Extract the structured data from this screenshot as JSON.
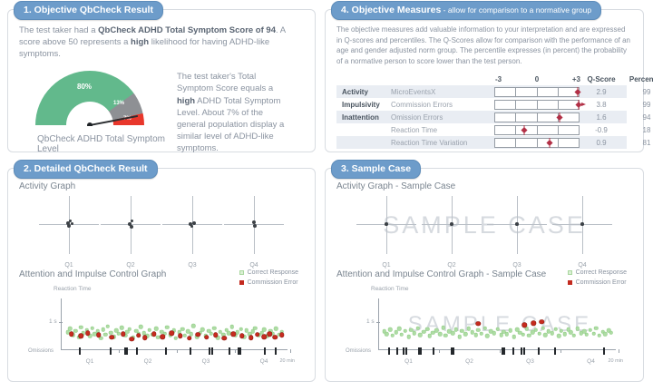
{
  "objective_result": {
    "header": "1. Objective QbCheck Result",
    "intro": {
      "p1": "The test taker had a ",
      "b1": "QbCheck ADHD Total Symptom Score of 94",
      "p2": ". A score above 50 represents a ",
      "b2": "high",
      "p3": " likelihood for having ADHD-like symptoms."
    },
    "side": {
      "p1": "The test taker's Total Symptom Score equals a ",
      "b1": "high",
      "p2": " ADHD Total Symptom Level. About 7% of the general population display a similar level of ADHD-like symptoms."
    }
  },
  "objective_measures": {
    "header": "4. Objective Measures",
    "header_suffix": " - allow for comparison to a normative group",
    "paragraph": "The objective measures add valuable information to your interpretation and are expressed in Q-scores and percentiles. The Q-Scores allow for comparison with the performance of an age and gender adjusted norm group. The percentile expresses (in percent) the probability of a normative person to score lower than the test person.",
    "scale": [
      "-3",
      "0",
      "+3"
    ],
    "q_header": "Q-Score",
    "pct_header": "Percentile"
  },
  "detailed_result": {
    "header": "2. Detailed QbCheck Result",
    "activity_title": "Activity Graph",
    "attention_title": "Attention and Impulse Control Graph",
    "quarters": [
      "Q1",
      "Q2",
      "Q3",
      "Q4"
    ],
    "legend": {
      "correct": "Correct Response",
      "commission": "Commission Error"
    },
    "axis": {
      "ylabel": "Reaction Time",
      "ytick": "1 s",
      "origin": "Omissions",
      "xend": "20 min"
    }
  },
  "sample_case": {
    "header": "3. Sample Case",
    "activity_title": "Activity Graph - Sample Case",
    "attention_title": "Attention and Impulse Control Graph - Sample Case",
    "watermark": "SAMPLE CASE",
    "quarters": [
      "Q1",
      "Q2",
      "Q3",
      "Q4"
    ],
    "legend": {
      "correct": "Correct Response",
      "commission": "Commission Error"
    },
    "axis": {
      "ylabel": "Reaction Time",
      "ytick": "1 s",
      "origin": "Omissions",
      "xend": "20 min"
    }
  },
  "colors": {
    "header_pill": "#6d9cca",
    "gauge_green": "#62b98c",
    "gauge_gray": "#8e9094",
    "gauge_red": "#e8372b",
    "marker_red": "#b23046",
    "dot_green": "#aedca4",
    "dot_red": "#c62b1f"
  },
  "chart_data": [
    {
      "id": "symptom_gauge",
      "type": "pie",
      "title": "QbCheck ADHD Total Symptom Level",
      "slices": [
        {
          "label": "80%",
          "value": 80,
          "color": "#62b98c"
        },
        {
          "label": "13%",
          "value": 13,
          "color": "#8e9094"
        },
        {
          "label": "7%",
          "value": 7,
          "color": "#e8372b"
        }
      ],
      "needle_score": 94
    },
    {
      "id": "qscore_table",
      "type": "table",
      "columns": [
        "-3",
        "0",
        "+3",
        "Q-Score",
        "Percentile"
      ],
      "axis_range": [
        -3,
        3
      ],
      "rows": [
        {
          "category": "Activity",
          "measure": "MicroEventsX",
          "q": 2.9,
          "q_label": "2.9",
          "pct": "99",
          "off_scale": false
        },
        {
          "category": "Impulsivity",
          "measure": "Commission Errors",
          "q": 3.8,
          "q_label": "3.8",
          "pct": "99",
          "off_scale": true
        },
        {
          "category": "Inattention",
          "measure": "Omission Errors",
          "q": 1.6,
          "q_label": "1.6",
          "pct": "94",
          "off_scale": false
        },
        {
          "category": "",
          "measure": "Reaction Time",
          "q": -0.9,
          "q_label": "-0.9",
          "pct": "18",
          "off_scale": false
        },
        {
          "category": "",
          "measure": "Reaction Time Variation",
          "q": 0.9,
          "q_label": "0.9",
          "pct": "81",
          "off_scale": false
        }
      ]
    },
    {
      "id": "activity_graph",
      "type": "scatter",
      "categories": [
        "Q1",
        "Q2",
        "Q3",
        "Q4"
      ]
    },
    {
      "id": "activity_graph_sample",
      "type": "scatter",
      "categories": [
        "Q1",
        "Q2",
        "Q3",
        "Q4"
      ]
    },
    {
      "id": "attention_scatter",
      "type": "scatter",
      "ylabel": "Reaction Time",
      "ytick": "1 s",
      "xlabels": [
        "Q1",
        "Q2",
        "Q3",
        "Q4"
      ],
      "xend": "20 min",
      "series": [
        {
          "name": "Correct Response",
          "points": [
            [
              2,
              66
            ],
            [
              3,
              58
            ],
            [
              4.5,
              72
            ],
            [
              5.5,
              63
            ],
            [
              7,
              76
            ],
            [
              8,
              55
            ],
            [
              9,
              68
            ],
            [
              10.5,
              61
            ],
            [
              12,
              74
            ],
            [
              13,
              57
            ],
            [
              14,
              70
            ],
            [
              15.5,
              64
            ],
            [
              17,
              78
            ],
            [
              18,
              60
            ],
            [
              19,
              71
            ],
            [
              20,
              53
            ],
            [
              21.5,
              67
            ],
            [
              23,
              75
            ],
            [
              24,
              62
            ],
            [
              25,
              69
            ],
            [
              26.5,
              56
            ],
            [
              28,
              73
            ],
            [
              29,
              65
            ],
            [
              30,
              59
            ],
            [
              31.5,
              77
            ],
            [
              33,
              63
            ],
            [
              34,
              70
            ],
            [
              35,
              54
            ],
            [
              36.5,
              68
            ],
            [
              38,
              74
            ],
            [
              39,
              61
            ],
            [
              40.5,
              71
            ],
            [
              42,
              58
            ],
            [
              43,
              76
            ],
            [
              44.5,
              65
            ],
            [
              46,
              69
            ],
            [
              47,
              55
            ],
            [
              48.5,
              72
            ],
            [
              50,
              62
            ],
            [
              51,
              78
            ],
            [
              52.5,
              66
            ],
            [
              54,
              59
            ],
            [
              55,
              73
            ],
            [
              56.5,
              64
            ],
            [
              58,
              70
            ],
            [
              59,
              52
            ],
            [
              60.5,
              75
            ],
            [
              62,
              67
            ],
            [
              63,
              60
            ],
            [
              64.5,
              74
            ],
            [
              66,
              63
            ],
            [
              67,
              69
            ],
            [
              68.5,
              57
            ],
            [
              70,
              77
            ],
            [
              71,
              65
            ],
            [
              72.5,
              71
            ],
            [
              74,
              61
            ],
            [
              75,
              68
            ],
            [
              76.5,
              54
            ],
            [
              78,
              73
            ],
            [
              79,
              66
            ],
            [
              80.5,
              59
            ],
            [
              82,
              75
            ],
            [
              83,
              62
            ],
            [
              84.5,
              70
            ],
            [
              86,
              64
            ],
            [
              87,
              57
            ],
            [
              88.5,
              72
            ],
            [
              90,
              67
            ],
            [
              91,
              60
            ],
            [
              92.5,
              74
            ],
            [
              94,
              63
            ],
            [
              95,
              69
            ],
            [
              96.5,
              58
            ],
            [
              98,
              71
            ],
            [
              99,
              65
            ]
          ]
        },
        {
          "name": "Commission Error",
          "points": [
            [
              3.5,
              70
            ],
            [
              8,
              74
            ],
            [
              11,
              68
            ],
            [
              16,
              72
            ],
            [
              22,
              76
            ],
            [
              27,
              70
            ],
            [
              31,
              80
            ],
            [
              34,
              73
            ],
            [
              37,
              77
            ],
            [
              41,
              70
            ],
            [
              45,
              75
            ],
            [
              49,
              68
            ],
            [
              53,
              74
            ],
            [
              57,
              78
            ],
            [
              61,
              71
            ],
            [
              65,
              76
            ],
            [
              69,
              72
            ],
            [
              73,
              78
            ],
            [
              77,
              70
            ],
            [
              81,
              74
            ],
            [
              85,
              77
            ],
            [
              88,
              71
            ],
            [
              91,
              75
            ],
            [
              93.5,
              70
            ],
            [
              96,
              76
            ],
            [
              99,
              72
            ]
          ]
        }
      ],
      "omissions_x": [
        7,
        21,
        27.5,
        28.5,
        33,
        46,
        57,
        66,
        67,
        75,
        79,
        80,
        91,
        96
      ]
    },
    {
      "id": "attention_scatter_sample",
      "type": "scatter",
      "ylabel": "Reaction Time",
      "ytick": "1 s",
      "xlabels": [
        "Q1",
        "Q2",
        "Q3",
        "Q4"
      ],
      "xend": "20 min",
      "series": [
        {
          "name": "Correct Response",
          "points": [
            [
              1.5,
              64
            ],
            [
              2.5,
              70
            ],
            [
              4,
              60
            ],
            [
              5,
              73
            ],
            [
              6.5,
              66
            ],
            [
              8,
              58
            ],
            [
              9,
              71
            ],
            [
              10.5,
              63
            ],
            [
              12,
              75
            ],
            [
              13,
              61
            ],
            [
              14.5,
              68
            ],
            [
              16,
              57
            ],
            [
              17,
              72
            ],
            [
              18.5,
              65
            ],
            [
              20,
              59
            ],
            [
              21,
              74
            ],
            [
              22.5,
              67
            ],
            [
              24,
              62
            ],
            [
              25.5,
              70
            ],
            [
              27,
              56
            ],
            [
              28,
              73
            ],
            [
              29.5,
              64
            ],
            [
              31,
              68
            ],
            [
              32.5,
              60
            ],
            [
              34,
              75
            ],
            [
              35,
              63
            ],
            [
              36.5,
              70
            ],
            [
              38,
              58
            ],
            [
              39.5,
              66
            ],
            [
              41,
              72
            ],
            [
              42,
              61
            ],
            [
              43.5,
              69
            ],
            [
              45,
              57
            ],
            [
              46,
              74
            ],
            [
              47.5,
              64
            ],
            [
              49,
              68
            ],
            [
              50.5,
              59
            ],
            [
              52,
              72
            ],
            [
              53,
              65
            ],
            [
              54.5,
              70
            ],
            [
              56,
              62
            ],
            [
              57.5,
              75
            ],
            [
              59,
              60
            ],
            [
              60,
              67
            ],
            [
              61.5,
              71
            ],
            [
              63,
              58
            ],
            [
              64,
              73
            ],
            [
              65.5,
              66
            ],
            [
              67,
              61
            ],
            [
              68.5,
              69
            ],
            [
              70,
              57
            ],
            [
              71,
              72
            ],
            [
              72.5,
              64
            ],
            [
              74,
              68
            ],
            [
              75.5,
              59
            ],
            [
              77,
              74
            ],
            [
              78,
              63
            ],
            [
              79.5,
              70
            ],
            [
              81,
              60
            ],
            [
              82,
              66
            ],
            [
              83.5,
              73
            ],
            [
              85,
              58
            ],
            [
              86.5,
              68
            ],
            [
              88,
              64
            ],
            [
              89,
              71
            ],
            [
              90.5,
              61
            ],
            [
              92,
              69
            ],
            [
              93,
              57
            ],
            [
              94.5,
              73
            ],
            [
              96,
              65
            ],
            [
              97,
              70
            ],
            [
              98.5,
              62
            ],
            [
              99.5,
              67
            ]
          ]
        },
        {
          "name": "Commission Error",
          "points": [
            [
              42,
              48
            ],
            [
              62,
              50
            ],
            [
              66,
              47
            ],
            [
              69.5,
              44
            ]
          ]
        }
      ],
      "omissions_x": [
        3,
        6.5,
        9.5,
        10.5,
        16,
        17,
        22.5,
        30,
        31,
        52,
        53,
        57,
        60.5,
        61.5,
        68,
        75,
        96
      ]
    }
  ]
}
